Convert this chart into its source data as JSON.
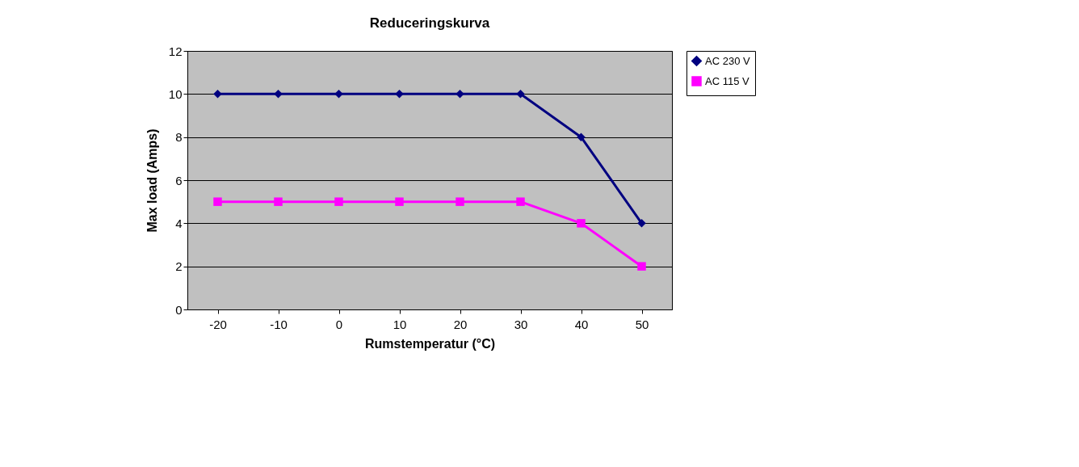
{
  "chart_data": {
    "type": "line",
    "title": "Reduceringskurva",
    "xlabel": "Rumstemperatur (°C)",
    "ylabel": "Max load (Amps)",
    "categories": [
      "-20",
      "-10",
      "0",
      "10",
      "20",
      "30",
      "40",
      "50"
    ],
    "series": [
      {
        "name": "AC 230 V",
        "color": "#000080",
        "marker": "diamond",
        "values": [
          10,
          10,
          10,
          10,
          10,
          10,
          8,
          4
        ]
      },
      {
        "name": "AC 115 V",
        "color": "#ff00ff",
        "marker": "square",
        "values": [
          5,
          5,
          5,
          5,
          5,
          5,
          4,
          2
        ]
      }
    ],
    "ylim": [
      0,
      12
    ],
    "yticks": [
      0,
      2,
      4,
      6,
      8,
      10,
      12
    ],
    "grid": "y",
    "legend": "right",
    "line_style": "solid"
  }
}
